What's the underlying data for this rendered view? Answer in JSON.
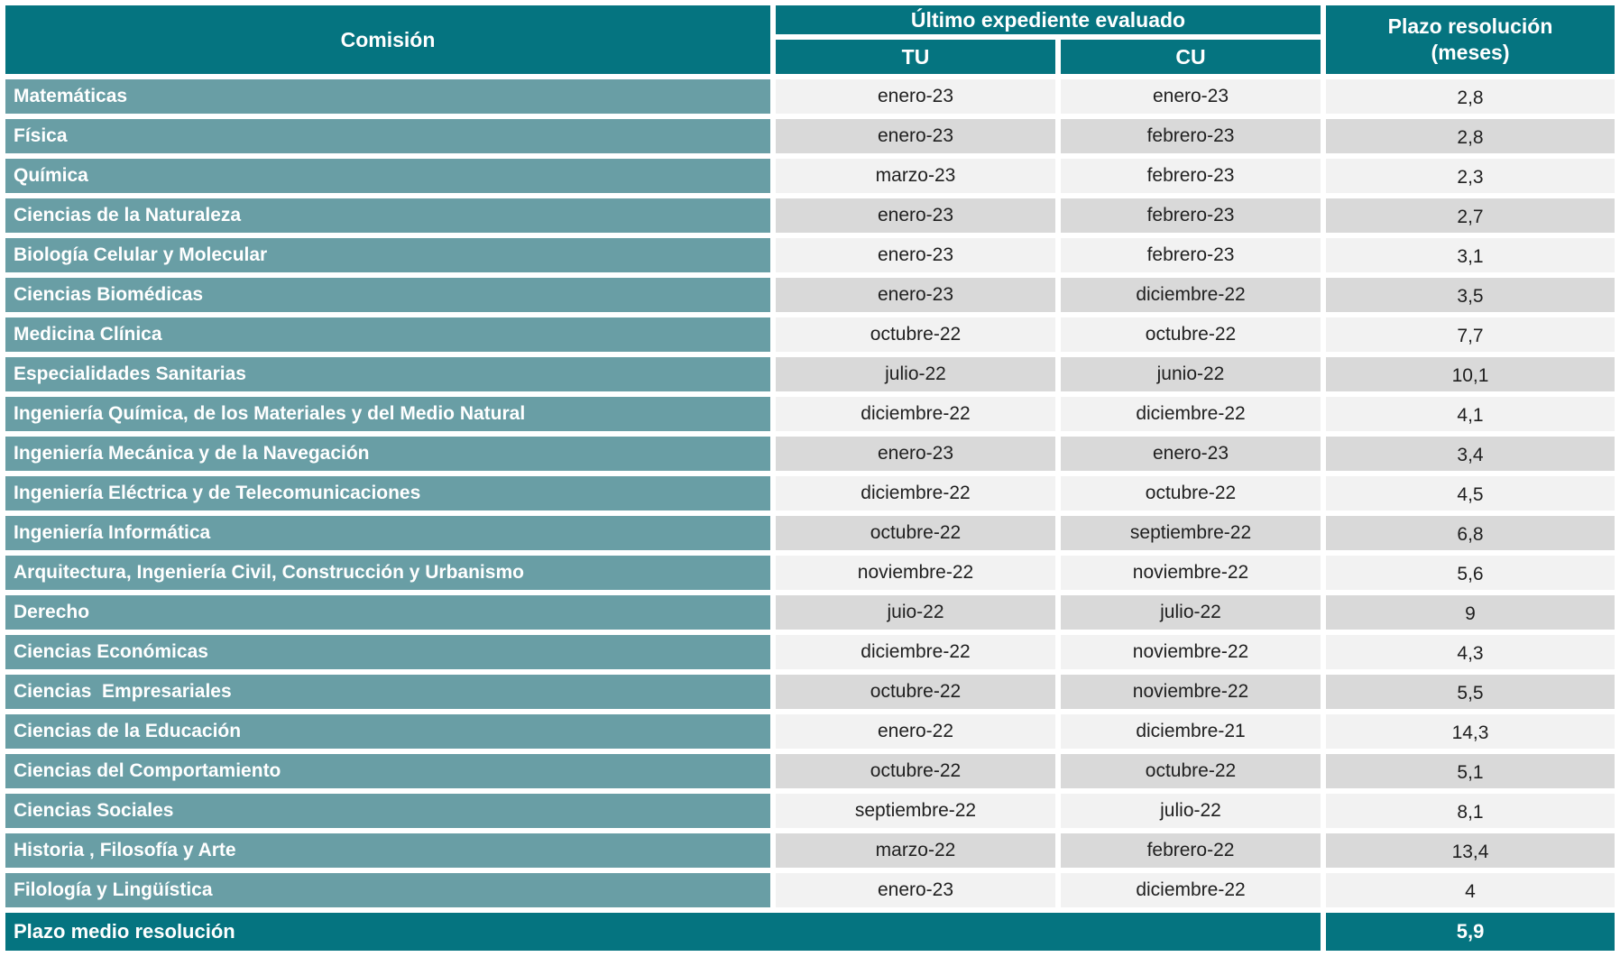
{
  "header": {
    "comision": "Comisión",
    "ultimo_expediente": "Último expediente evaluado",
    "tu": "TU",
    "cu": "CU",
    "plazo_line1": "Plazo resolución",
    "plazo_line2": "(meses)"
  },
  "footer": {
    "label": "Plazo medio resolución",
    "value": "5,9"
  },
  "colors": {
    "header_teal": "#057480",
    "row_header_teal": "#699EA5",
    "row_light": "#F2F2F2",
    "row_dark": "#D9D9D9",
    "text_dark": "#1F1F1F",
    "text_light": "#FFFFFF"
  },
  "chart_data": {
    "type": "table",
    "columns": [
      "Comisión",
      "Último expediente evaluado / TU",
      "Último expediente evaluado / CU",
      "Plazo resolución (meses)"
    ],
    "rows": [
      {
        "comision": "Matemáticas",
        "tu": "enero-23",
        "cu": "enero-23",
        "plazo": "2,8"
      },
      {
        "comision": "Física",
        "tu": "enero-23",
        "cu": "febrero-23",
        "plazo": "2,8"
      },
      {
        "comision": "Química",
        "tu": "marzo-23",
        "cu": "febrero-23",
        "plazo": "2,3"
      },
      {
        "comision": "Ciencias de la Naturaleza",
        "tu": "enero-23",
        "cu": "febrero-23",
        "plazo": "2,7"
      },
      {
        "comision": "Biología Celular y Molecular",
        "tu": "enero-23",
        "cu": "febrero-23",
        "plazo": "3,1"
      },
      {
        "comision": "Ciencias Biomédicas",
        "tu": "enero-23",
        "cu": "diciembre-22",
        "plazo": "3,5"
      },
      {
        "comision": "Medicina Clínica",
        "tu": "octubre-22",
        "cu": "octubre-22",
        "plazo": "7,7"
      },
      {
        "comision": "Especialidades Sanitarias",
        "tu": "julio-22",
        "cu": "junio-22",
        "plazo": "10,1"
      },
      {
        "comision": "Ingeniería Química, de los Materiales y del Medio Natural",
        "tu": "diciembre-22",
        "cu": "diciembre-22",
        "plazo": "4,1"
      },
      {
        "comision": "Ingeniería Mecánica y de la Navegación",
        "tu": "enero-23",
        "cu": "enero-23",
        "plazo": "3,4"
      },
      {
        "comision": "Ingeniería Eléctrica y de Telecomunicaciones",
        "tu": "diciembre-22",
        "cu": "octubre-22",
        "plazo": "4,5"
      },
      {
        "comision": "Ingeniería Informática",
        "tu": "octubre-22",
        "cu": "septiembre-22",
        "plazo": "6,8"
      },
      {
        "comision": "Arquitectura, Ingeniería Civil, Construcción y Urbanismo",
        "tu": "noviembre-22",
        "cu": "noviembre-22",
        "plazo": "5,6"
      },
      {
        "comision": "Derecho",
        "tu": "juio-22",
        "cu": "julio-22",
        "plazo": "9"
      },
      {
        "comision": "Ciencias Económicas",
        "tu": "diciembre-22",
        "cu": "noviembre-22",
        "plazo": "4,3"
      },
      {
        "comision": "Ciencias  Empresariales",
        "tu": "octubre-22",
        "cu": "noviembre-22",
        "plazo": "5,5"
      },
      {
        "comision": "Ciencias de la Educación",
        "tu": "enero-22",
        "cu": "diciembre-21",
        "plazo": "14,3"
      },
      {
        "comision": "Ciencias del Comportamiento",
        "tu": "octubre-22",
        "cu": "octubre-22",
        "plazo": "5,1"
      },
      {
        "comision": "Ciencias Sociales",
        "tu": "septiembre-22",
        "cu": "julio-22",
        "plazo": "8,1"
      },
      {
        "comision": "Historia , Filosofía y Arte",
        "tu": "marzo-22",
        "cu": "febrero-22",
        "plazo": "13,4"
      },
      {
        "comision": "Filología y Lingüística",
        "tu": "enero-23",
        "cu": "diciembre-22",
        "plazo": "4"
      }
    ],
    "footer_row": [
      "Plazo medio resolución",
      "",
      "",
      "5,9"
    ]
  }
}
